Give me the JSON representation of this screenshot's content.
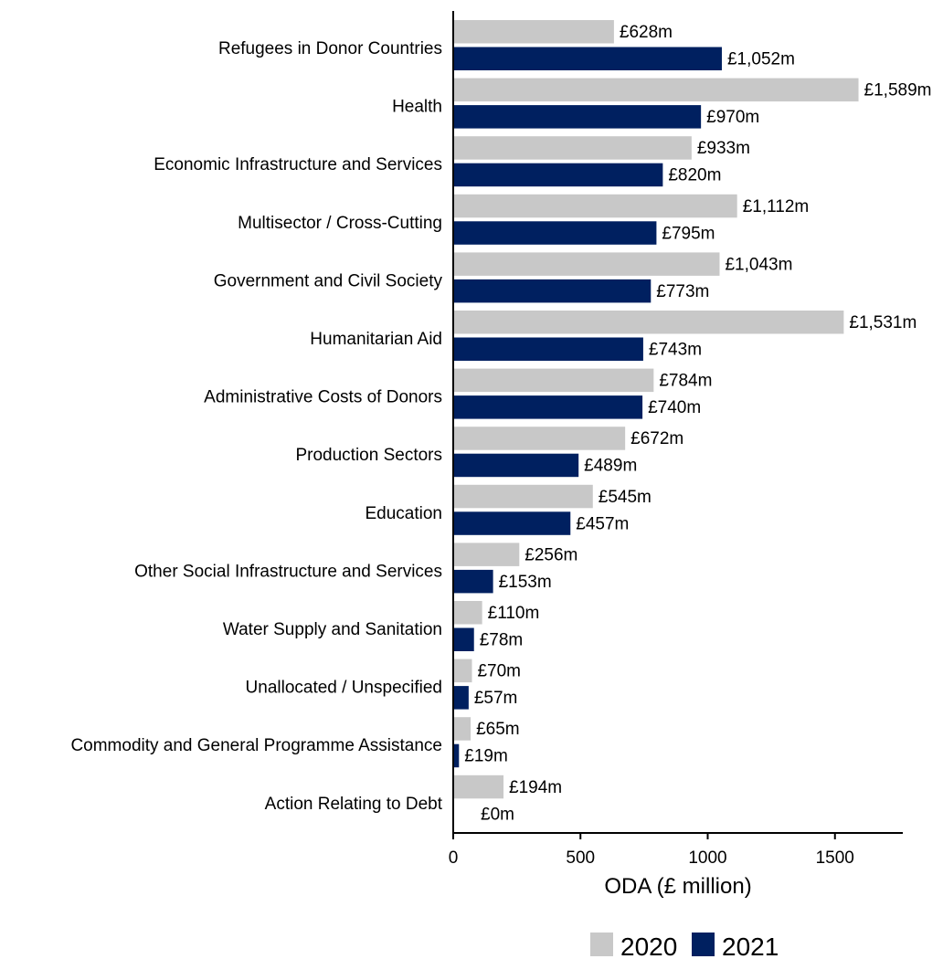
{
  "chart_data": {
    "type": "bar",
    "orientation": "horizontal",
    "xlabel": "ODA (£ million)",
    "xlim": [
      0,
      1750
    ],
    "xticks": [
      0,
      500,
      1000,
      1500
    ],
    "grid": false,
    "legend_position": "bottom-right",
    "categories": [
      "Refugees in Donor Countries",
      "Health",
      "Economic Infrastructure and Services",
      "Multisector / Cross-Cutting",
      "Government and Civil Society",
      "Humanitarian Aid",
      "Administrative Costs of Donors",
      "Production Sectors",
      "Education",
      "Other Social Infrastructure and Services",
      "Water Supply and Sanitation",
      "Unallocated / Unspecified",
      "Commodity and General Programme Assistance",
      "Action Relating to Debt"
    ],
    "series": [
      {
        "name": "2020",
        "color": "#c8c8c8",
        "values": [
          628,
          1589,
          933,
          1112,
          1043,
          1531,
          784,
          672,
          545,
          256,
          110,
          70,
          65,
          194
        ],
        "labels": [
          "£628m",
          "£1,589m",
          "£933m",
          "£1,112m",
          "£1,043m",
          "£1,531m",
          "£784m",
          "£672m",
          "£545m",
          "£256m",
          "£110m",
          "£70m",
          "£65m",
          "£194m"
        ]
      },
      {
        "name": "2021",
        "color": "#002060",
        "values": [
          1052,
          970,
          820,
          795,
          773,
          743,
          740,
          489,
          457,
          153,
          78,
          57,
          19,
          0
        ],
        "labels": [
          "£1,052m",
          "£970m",
          "£820m",
          "£795m",
          "£773m",
          "£743m",
          "£740m",
          "£489m",
          "£457m",
          "£153m",
          "£78m",
          "£57m",
          "£19m",
          "£0m"
        ]
      }
    ]
  }
}
